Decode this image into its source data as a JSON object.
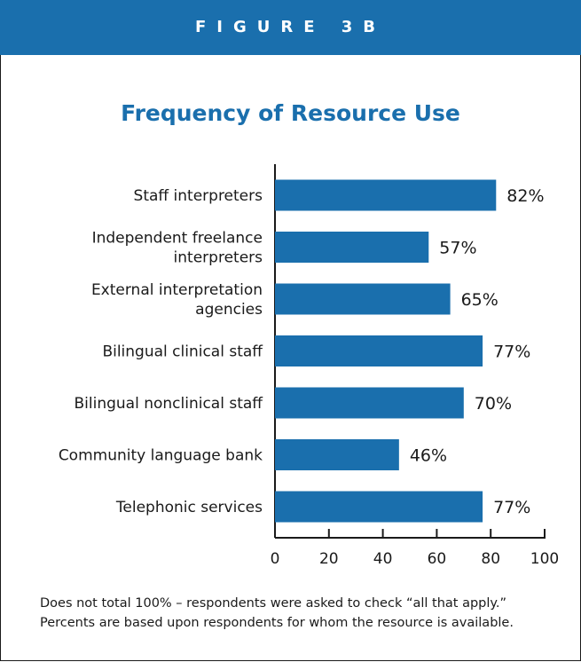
{
  "banner": "FIGURE 3B",
  "chart_data": {
    "type": "bar",
    "orientation": "horizontal",
    "title": "Frequency of Resource Use",
    "categories": [
      [
        "Staff interpreters"
      ],
      [
        "Independent freelance",
        "interpreters"
      ],
      [
        "External interpretation",
        "agencies"
      ],
      [
        "Bilingual clinical staff"
      ],
      [
        "Bilingual nonclinical staff"
      ],
      [
        "Community language bank"
      ],
      [
        "Telephonic services"
      ]
    ],
    "values": [
      82,
      57,
      65,
      77,
      70,
      46,
      77
    ],
    "value_labels": [
      "82%",
      "57%",
      "65%",
      "77%",
      "70%",
      "46%",
      "77%"
    ],
    "xlim": [
      0,
      100
    ],
    "xticks": [
      0,
      20,
      40,
      60,
      80,
      100
    ],
    "bar_color": "#1a6fad",
    "xlabel": "",
    "ylabel": ""
  },
  "notes": [
    "Does not total 100% – respondents were asked to check “all that apply.”",
    "Percents are based upon respondents for whom the resource is available."
  ]
}
